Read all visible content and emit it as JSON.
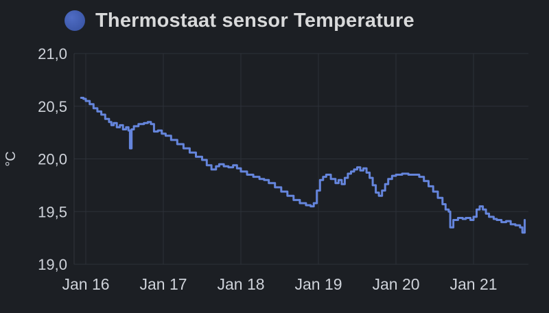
{
  "header": {
    "title": "Thermostaat sensor Temperature"
  },
  "colors": {
    "background": "#1c1f24",
    "title_text": "#d8d9da",
    "legend_dot": "#3d59ae",
    "line": "#6585dc",
    "grid": "#2d3138",
    "axis_line": "#32363d",
    "axis_text": "#ced2d9"
  },
  "chart_data": {
    "type": "line",
    "title": "Thermostaat sensor Temperature",
    "xlabel": "",
    "ylabel": "°C",
    "ylim": [
      19.0,
      21.0
    ],
    "xlim_days": [
      15.85,
      21.71
    ],
    "line_style": "step-after",
    "grid": true,
    "legend_position": "top",
    "y_ticks": [
      {
        "v": 21.0,
        "label": "21,0"
      },
      {
        "v": 20.5,
        "label": "20,5"
      },
      {
        "v": 20.0,
        "label": "20,0"
      },
      {
        "v": 19.5,
        "label": "19,5"
      },
      {
        "v": 19.0,
        "label": "19,0"
      }
    ],
    "x_ticks": [
      {
        "d": 16,
        "label": "Jan 16"
      },
      {
        "d": 17,
        "label": "Jan 17"
      },
      {
        "d": 18,
        "label": "Jan 18"
      },
      {
        "d": 19,
        "label": "Jan 19"
      },
      {
        "d": 20,
        "label": "Jan 20"
      },
      {
        "d": 21,
        "label": "Jan 21"
      }
    ],
    "series": [
      {
        "name": "Thermostaat sensor Temperature",
        "points": [
          [
            15.94,
            20.58
          ],
          [
            15.97,
            20.57
          ],
          [
            16.0,
            20.55
          ],
          [
            16.05,
            20.52
          ],
          [
            16.1,
            20.48
          ],
          [
            16.15,
            20.45
          ],
          [
            16.2,
            20.42
          ],
          [
            16.25,
            20.38
          ],
          [
            16.3,
            20.35
          ],
          [
            16.33,
            20.32
          ],
          [
            16.36,
            20.34
          ],
          [
            16.4,
            20.3
          ],
          [
            16.44,
            20.32
          ],
          [
            16.48,
            20.28
          ],
          [
            16.52,
            20.3
          ],
          [
            16.55,
            20.27
          ],
          [
            16.57,
            20.1
          ],
          [
            16.59,
            20.28
          ],
          [
            16.62,
            20.31
          ],
          [
            16.68,
            20.33
          ],
          [
            16.75,
            20.34
          ],
          [
            16.8,
            20.35
          ],
          [
            16.84,
            20.33
          ],
          [
            16.88,
            20.26
          ],
          [
            16.93,
            20.27
          ],
          [
            16.98,
            20.24
          ],
          [
            17.03,
            20.22
          ],
          [
            17.1,
            20.18
          ],
          [
            17.18,
            20.14
          ],
          [
            17.26,
            20.1
          ],
          [
            17.34,
            20.06
          ],
          [
            17.42,
            20.02
          ],
          [
            17.5,
            19.99
          ],
          [
            17.56,
            19.94
          ],
          [
            17.62,
            19.9
          ],
          [
            17.68,
            19.93
          ],
          [
            17.72,
            19.95
          ],
          [
            17.78,
            19.93
          ],
          [
            17.84,
            19.92
          ],
          [
            17.9,
            19.94
          ],
          [
            17.95,
            19.91
          ],
          [
            18.0,
            19.88
          ],
          [
            18.08,
            19.85
          ],
          [
            18.16,
            19.83
          ],
          [
            18.24,
            19.81
          ],
          [
            18.3,
            19.8
          ],
          [
            18.36,
            19.77
          ],
          [
            18.44,
            19.73
          ],
          [
            18.52,
            19.69
          ],
          [
            18.6,
            19.65
          ],
          [
            18.68,
            19.61
          ],
          [
            18.76,
            19.58
          ],
          [
            18.84,
            19.56
          ],
          [
            18.9,
            19.55
          ],
          [
            18.94,
            19.58
          ],
          [
            18.98,
            19.7
          ],
          [
            19.02,
            19.8
          ],
          [
            19.06,
            19.83
          ],
          [
            19.1,
            19.85
          ],
          [
            19.16,
            19.81
          ],
          [
            19.22,
            19.77
          ],
          [
            19.26,
            19.8
          ],
          [
            19.3,
            19.76
          ],
          [
            19.34,
            19.82
          ],
          [
            19.38,
            19.86
          ],
          [
            19.42,
            19.88
          ],
          [
            19.46,
            19.9
          ],
          [
            19.5,
            19.92
          ],
          [
            19.54,
            19.89
          ],
          [
            19.58,
            19.91
          ],
          [
            19.62,
            19.87
          ],
          [
            19.66,
            19.82
          ],
          [
            19.7,
            19.75
          ],
          [
            19.74,
            19.68
          ],
          [
            19.78,
            19.65
          ],
          [
            19.82,
            19.7
          ],
          [
            19.86,
            19.76
          ],
          [
            19.9,
            19.81
          ],
          [
            19.95,
            19.84
          ],
          [
            20.0,
            19.85
          ],
          [
            20.08,
            19.86
          ],
          [
            20.16,
            19.85
          ],
          [
            20.24,
            19.85
          ],
          [
            20.3,
            19.83
          ],
          [
            20.36,
            19.79
          ],
          [
            20.42,
            19.74
          ],
          [
            20.48,
            19.69
          ],
          [
            20.54,
            19.63
          ],
          [
            20.6,
            19.57
          ],
          [
            20.64,
            19.52
          ],
          [
            20.68,
            19.5
          ],
          [
            20.7,
            19.35
          ],
          [
            20.74,
            19.42
          ],
          [
            20.8,
            19.44
          ],
          [
            20.86,
            19.43
          ],
          [
            20.9,
            19.44
          ],
          [
            20.96,
            19.42
          ],
          [
            21.0,
            19.45
          ],
          [
            21.04,
            19.52
          ],
          [
            21.08,
            19.55
          ],
          [
            21.12,
            19.52
          ],
          [
            21.16,
            19.48
          ],
          [
            21.2,
            19.45
          ],
          [
            21.26,
            19.43
          ],
          [
            21.3,
            19.42
          ],
          [
            21.36,
            19.4
          ],
          [
            21.42,
            19.41
          ],
          [
            21.48,
            19.38
          ],
          [
            21.54,
            19.37
          ],
          [
            21.6,
            19.35
          ],
          [
            21.63,
            19.3
          ],
          [
            21.66,
            19.42
          ]
        ]
      }
    ]
  }
}
